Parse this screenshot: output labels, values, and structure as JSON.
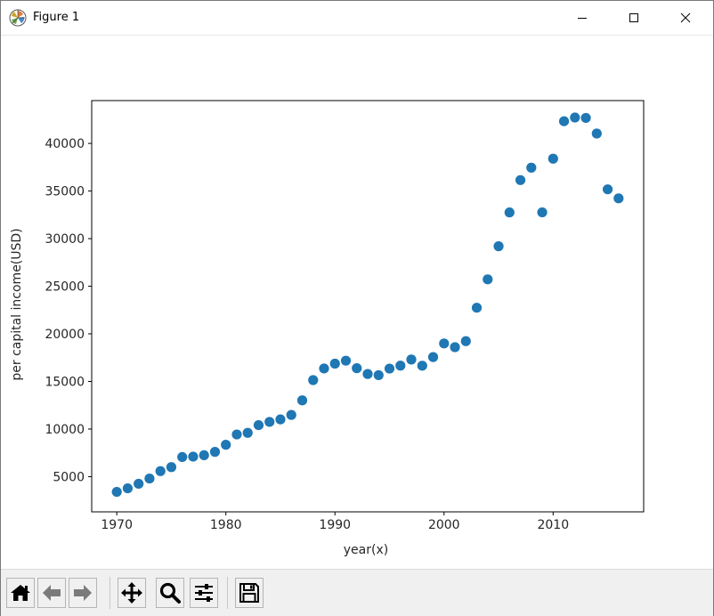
{
  "window": {
    "title": "Figure 1",
    "icons": {
      "app": "matplotlib-logo-icon",
      "minimize": "minimize-icon",
      "maximize": "maximize-icon",
      "close": "close-icon"
    }
  },
  "toolbar": {
    "buttons": [
      {
        "name": "home-button",
        "icon": "home-icon"
      },
      {
        "name": "back-button",
        "icon": "arrow-left-icon"
      },
      {
        "name": "forward-button",
        "icon": "arrow-right-icon"
      },
      {
        "name": "pan-button",
        "icon": "move-icon"
      },
      {
        "name": "zoom-button",
        "icon": "magnifier-icon"
      },
      {
        "name": "configure-subplots-button",
        "icon": "sliders-icon"
      },
      {
        "name": "save-button",
        "icon": "floppy-disk-icon"
      }
    ]
  },
  "chart_data": {
    "type": "scatter",
    "title": "",
    "xlabel": "year(x)",
    "ylabel": "per capital income(USD)",
    "xlim": [
      1967.7,
      2018.3
    ],
    "ylim": [
      1300,
      44500
    ],
    "xticks": [
      1970,
      1980,
      1990,
      2000,
      2010
    ],
    "yticks": [
      5000,
      10000,
      15000,
      20000,
      25000,
      30000,
      35000,
      40000
    ],
    "grid": false,
    "marker_color": "#1f77b4",
    "x": [
      1970,
      1971,
      1972,
      1973,
      1974,
      1975,
      1976,
      1977,
      1978,
      1979,
      1980,
      1981,
      1982,
      1983,
      1984,
      1985,
      1986,
      1987,
      1988,
      1989,
      1990,
      1991,
      1992,
      1993,
      1994,
      1995,
      1996,
      1997,
      1998,
      1999,
      2000,
      2001,
      2002,
      2003,
      2004,
      2005,
      2006,
      2007,
      2008,
      2009,
      2010,
      2011,
      2012,
      2013,
      2014,
      2015,
      2016
    ],
    "y": [
      3400,
      3770,
      4250,
      4800,
      5580,
      6000,
      7060,
      7100,
      7250,
      7600,
      8350,
      9430,
      9600,
      10410,
      10750,
      11010,
      11480,
      13010,
      15140,
      16360,
      16870,
      17180,
      16390,
      15780,
      15660,
      16350,
      16660,
      17300,
      16650,
      17560,
      18990,
      18600,
      19230,
      22740,
      25720,
      29200,
      32750,
      36150,
      37450,
      32760,
      38400,
      42330,
      42720,
      42680,
      41040,
      35180,
      34230
    ]
  }
}
